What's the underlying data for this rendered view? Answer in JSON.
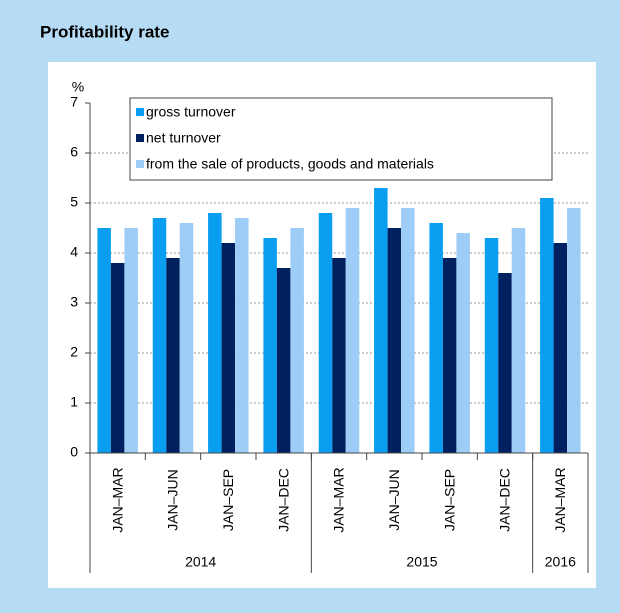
{
  "chart_data": {
    "type": "bar",
    "title": "Profitability rate",
    "y_label": "%",
    "categories": [
      "JAN–MAR",
      "JAN–JUN",
      "JAN–SEP",
      "JAN–DEC",
      "JAN–MAR",
      "JAN–JUN",
      "JAN–SEP",
      "JAN–DEC",
      "JAN–MAR"
    ],
    "category_groups": [
      "2014",
      null,
      null,
      null,
      "2015",
      null,
      null,
      null,
      "2016"
    ],
    "series": [
      {
        "name": "gross turnover",
        "color": "#0a9ef0",
        "values": [
          4.5,
          4.7,
          4.8,
          4.3,
          4.8,
          5.3,
          4.6,
          4.3,
          5.1
        ]
      },
      {
        "name": "net turnover",
        "color": "#002060",
        "values": [
          3.8,
          3.9,
          4.2,
          3.7,
          3.9,
          4.5,
          3.9,
          3.6,
          4.2
        ]
      },
      {
        "name": "from the sale of products, goods and materials",
        "color": "#9dcdf7",
        "values": [
          4.5,
          4.6,
          4.7,
          4.5,
          4.9,
          4.9,
          4.4,
          4.5,
          4.9
        ]
      }
    ],
    "ylim": [
      0,
      7
    ],
    "yticks": [
      0,
      1,
      2,
      3,
      4,
      5,
      6,
      7
    ],
    "grid": true,
    "legend": "top"
  }
}
